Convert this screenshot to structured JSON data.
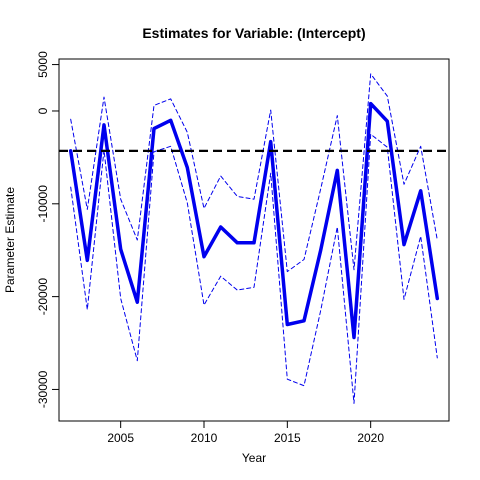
{
  "chart_data": {
    "type": "line",
    "title": "Estimates for Variable: (Intercept)",
    "xlabel": "Year",
    "ylabel": "Parameter Estimate",
    "xlim": [
      2001.3,
      2024.7
    ],
    "ylim": [
      -33400,
      5600
    ],
    "x_ticks": [
      2005,
      2010,
      2015,
      2020
    ],
    "y_ticks": [
      5000,
      0,
      -10000,
      -20000,
      -30000
    ],
    "x": [
      2002,
      2003,
      2004,
      2005,
      2006,
      2007,
      2008,
      2009,
      2010,
      2011,
      2012,
      2013,
      2014,
      2015,
      2016,
      2017,
      2018,
      2019,
      2020,
      2021,
      2022,
      2023,
      2024
    ],
    "reference_line": -4300,
    "series": [
      {
        "role": "estimate",
        "color": "#0000EE",
        "values": [
          -4300,
          -16100,
          -1500,
          -14900,
          -20600,
          -1900,
          -1000,
          -6100,
          -15700,
          -12500,
          -14200,
          -14200,
          -3300,
          -23000,
          -22600,
          -15000,
          -6400,
          -24400,
          800,
          -1100,
          -14400,
          -8600,
          -20200
        ]
      },
      {
        "role": "upper",
        "color": "#0000EE",
        "values": [
          -900,
          -10600,
          1500,
          -9500,
          -13900,
          600,
          1300,
          -2300,
          -10500,
          -7000,
          -9200,
          -9500,
          100,
          -17300,
          -16000,
          -8400,
          -500,
          -17100,
          4000,
          1600,
          -7900,
          -3800,
          -13900
        ]
      },
      {
        "role": "lower",
        "color": "#0000EE",
        "values": [
          -8200,
          -21400,
          -4200,
          -20200,
          -26900,
          -4400,
          -3800,
          -9900,
          -20900,
          -17800,
          -19300,
          -19000,
          -6700,
          -28900,
          -29600,
          -21500,
          -12500,
          -31500,
          -2500,
          -3900,
          -20300,
          -13500,
          -26600
        ]
      }
    ],
    "grid": false,
    "legend": "none"
  }
}
